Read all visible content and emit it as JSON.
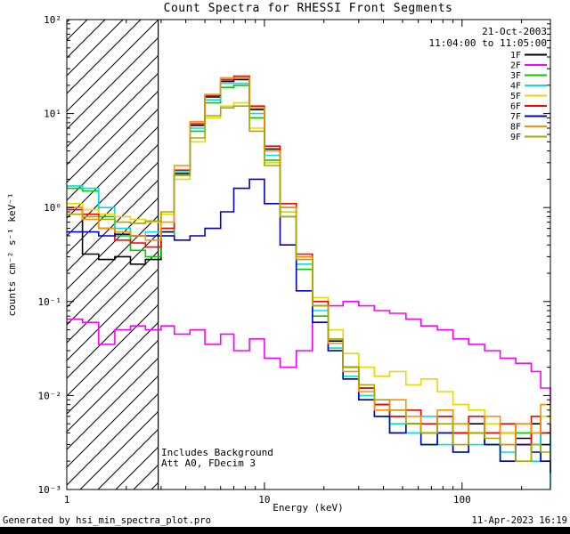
{
  "header": {
    "title": "Count Spectra for RHESSI Front Segments",
    "date": "21-Oct-2003",
    "time_range": "11:04:00 to 11:05:00"
  },
  "footer": {
    "generated_by": "Generated by hsi_min_spectra_plot.pro",
    "timestamp": "11-Apr-2023 16:19"
  },
  "chart_data": {
    "type": "line",
    "style": "step-histogram",
    "x_scale": "log",
    "y_scale": "log",
    "title": "Count Spectra for RHESSI Front Segments",
    "xlabel": "Energy (keV)",
    "ylabel": "counts cm⁻² s⁻¹ keV⁻¹",
    "xlim": [
      1,
      280
    ],
    "ylim": [
      0.001,
      100
    ],
    "grid": "off",
    "legend_position": "top-right-inside",
    "xticks": [
      {
        "label": "1",
        "value": 1
      },
      {
        "label": "10",
        "value": 10
      },
      {
        "label": "100",
        "value": 100
      }
    ],
    "yticks": [
      {
        "label": "10²",
        "value": 100
      },
      {
        "label": "10¹",
        "value": 10
      },
      {
        "label": "10⁰",
        "value": 1
      },
      {
        "label": "10⁻¹",
        "value": 0.1
      },
      {
        "label": "10⁻²",
        "value": 0.01
      },
      {
        "label": "10⁻³",
        "value": 0.001
      }
    ],
    "annotations": [
      "Includes Background",
      "Att A0, FDecim 3"
    ],
    "hatch_region": {
      "from": 1.0,
      "to": 2.9
    },
    "x": [
      1.0,
      1.2,
      1.45,
      1.75,
      2.1,
      2.5,
      3.0,
      3.5,
      4.2,
      5.0,
      6.0,
      7.0,
      8.4,
      10,
      12,
      14.5,
      17.5,
      21,
      25,
      30,
      36,
      43,
      52,
      62,
      75,
      90,
      108,
      130,
      156,
      187,
      224,
      250,
      280
    ],
    "series": [
      {
        "name": "1F",
        "color": "#000000",
        "values": [
          1.0,
          0.32,
          0.28,
          0.3,
          0.25,
          0.28,
          0.55,
          2.3,
          7.5,
          15,
          22,
          23,
          11,
          4.2,
          1.0,
          0.3,
          0.09,
          0.038,
          0.02,
          0.012,
          0.008,
          0.006,
          0.005,
          0.004,
          0.006,
          0.004,
          0.005,
          0.003,
          0.004,
          0.0035,
          0.005,
          0.003,
          0.004
        ]
      },
      {
        "name": "2F",
        "color": "#ff00ff",
        "values": [
          0.065,
          0.06,
          0.035,
          0.05,
          0.055,
          0.05,
          0.055,
          0.045,
          0.05,
          0.035,
          0.045,
          0.03,
          0.04,
          0.025,
          0.02,
          0.03,
          0.06,
          0.09,
          0.1,
          0.09,
          0.08,
          0.075,
          0.065,
          0.055,
          0.05,
          0.04,
          0.035,
          0.03,
          0.025,
          0.022,
          0.018,
          0.012,
          0.008
        ]
      },
      {
        "name": "3F",
        "color": "#00cc00",
        "values": [
          1.6,
          1.5,
          0.8,
          0.5,
          0.35,
          0.3,
          0.5,
          2.2,
          6.5,
          13,
          19,
          20,
          9,
          3.2,
          0.8,
          0.22,
          0.07,
          0.03,
          0.015,
          0.009,
          0.006,
          0.004,
          0.005,
          0.003,
          0.004,
          0.0025,
          0.004,
          0.003,
          0.002,
          0.004,
          0.003,
          0.002,
          0.003
        ]
      },
      {
        "name": "4F",
        "color": "#00e0e0",
        "values": [
          1.7,
          1.6,
          1.0,
          0.6,
          0.5,
          0.55,
          0.6,
          2.4,
          7.0,
          14,
          21,
          21,
          10,
          3.6,
          0.9,
          0.25,
          0.08,
          0.032,
          0.016,
          0.01,
          0.006,
          0.005,
          0.004,
          0.006,
          0.003,
          0.005,
          0.003,
          0.004,
          0.0025,
          0.003,
          0.002,
          0.004,
          0.001
        ]
      },
      {
        "name": "5F",
        "color": "#e8d800",
        "values": [
          1.1,
          0.95,
          0.85,
          0.8,
          0.75,
          0.7,
          0.85,
          2.0,
          5.0,
          9.0,
          12,
          13,
          7.0,
          3.0,
          0.9,
          0.3,
          0.11,
          0.05,
          0.028,
          0.02,
          0.016,
          0.018,
          0.013,
          0.015,
          0.011,
          0.008,
          0.007,
          0.005,
          0.004,
          0.005,
          0.004,
          0.006,
          0.005
        ]
      },
      {
        "name": "6F",
        "color": "#ff0000",
        "values": [
          0.95,
          0.85,
          0.6,
          0.45,
          0.42,
          0.38,
          0.6,
          2.5,
          7.8,
          15.5,
          23,
          25,
          12,
          4.5,
          1.1,
          0.32,
          0.1,
          0.04,
          0.02,
          0.012,
          0.008,
          0.006,
          0.007,
          0.005,
          0.006,
          0.004,
          0.006,
          0.004,
          0.005,
          0.003,
          0.006,
          0.004,
          0.005
        ]
      },
      {
        "name": "7F",
        "color": "#0000cc",
        "values": [
          0.55,
          0.55,
          0.5,
          0.52,
          0.5,
          0.5,
          0.5,
          0.45,
          0.5,
          0.6,
          0.9,
          1.6,
          2.0,
          1.1,
          0.4,
          0.13,
          0.06,
          0.03,
          0.015,
          0.009,
          0.006,
          0.004,
          0.005,
          0.003,
          0.004,
          0.0025,
          0.004,
          0.003,
          0.002,
          0.003,
          0.0025,
          0.002,
          0.0015
        ]
      },
      {
        "name": "8F",
        "color": "#ff9000",
        "values": [
          1.0,
          0.75,
          0.6,
          0.55,
          0.5,
          0.45,
          0.7,
          2.8,
          8.2,
          16,
          24,
          24,
          11.5,
          4.0,
          1.0,
          0.3,
          0.09,
          0.036,
          0.018,
          0.011,
          0.007,
          0.009,
          0.006,
          0.004,
          0.007,
          0.005,
          0.004,
          0.006,
          0.003,
          0.005,
          0.004,
          0.008,
          0.006
        ]
      },
      {
        "name": "9F",
        "color": "#a8a800",
        "values": [
          0.85,
          0.8,
          0.75,
          0.7,
          0.68,
          0.72,
          0.9,
          2.2,
          5.5,
          9.5,
          11.5,
          12,
          6.5,
          2.8,
          0.8,
          0.28,
          0.09,
          0.04,
          0.02,
          0.013,
          0.009,
          0.007,
          0.005,
          0.004,
          0.005,
          0.003,
          0.004,
          0.0035,
          0.003,
          0.002,
          0.003,
          0.0025,
          0.002
        ]
      }
    ]
  }
}
